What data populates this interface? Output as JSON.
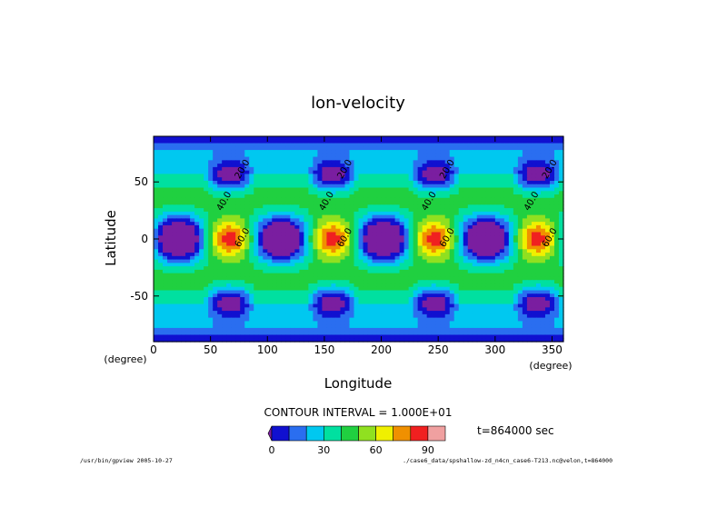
{
  "chart_data": {
    "type": "heatmap",
    "title": "lon-velocity",
    "xlabel": "Longitude",
    "ylabel": "Latitude",
    "x_unit": "(degree)",
    "y_unit": "(degree)",
    "xlim": [
      0,
      360
    ],
    "ylim": [
      -90,
      90
    ],
    "x_ticks": [
      0,
      50,
      100,
      150,
      200,
      250,
      300,
      350
    ],
    "y_ticks": [
      -50,
      0,
      50
    ],
    "pattern": {
      "wave_number": 4,
      "equatorial_max_longitudes": [
        67,
        157,
        247,
        337
      ],
      "equatorial_min_longitudes": [
        22,
        112,
        202,
        292
      ],
      "midlatitude_min_latitudes": [
        55,
        -55
      ],
      "polar_band_value": 5
    },
    "contour_interval_text": "CONTOUR INTERVAL = 1.000E+01",
    "contour_labels": [
      "20.0",
      "40.0",
      "60.0"
    ],
    "colorbar": {
      "levels": [
        0,
        10,
        20,
        30,
        40,
        50,
        60,
        70,
        80,
        90
      ],
      "tick_labels": [
        "0",
        "30",
        "60",
        "90"
      ],
      "colors": [
        "#1010d0",
        "#2a6ef0",
        "#00c8f0",
        "#00e0a0",
        "#20d040",
        "#90e020",
        "#f0f000",
        "#f09000",
        "#f02020",
        "#f0a0a0"
      ],
      "below_color": "#7a1ea0"
    },
    "time_label": "t=864000 sec",
    "footer_left": "/usr/bin/gpview  2005-10-27",
    "footer_right": "./case6_data/spshallow-zd_n4cn_case6-T213.nc@velon,t=864000"
  }
}
